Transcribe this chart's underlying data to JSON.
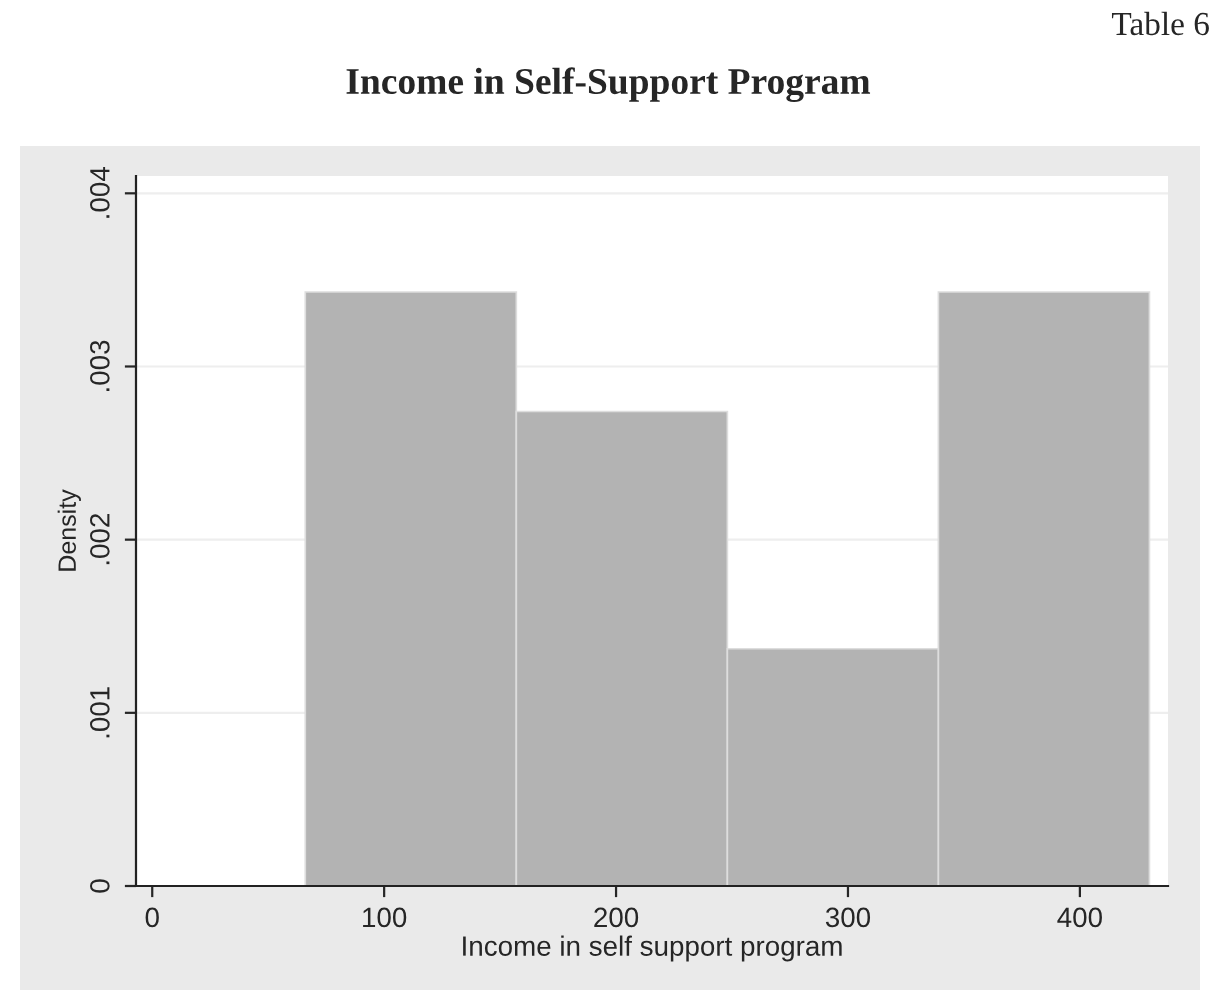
{
  "chart_data": {
    "type": "histogram",
    "title": "Income in Self-Support Program",
    "xlabel": "Income in self support program",
    "ylabel": "Density",
    "annotations": [
      "Table 6"
    ],
    "bins": [
      66,
      157,
      248,
      339,
      430
    ],
    "values": [
      0.00343,
      0.00274,
      0.00137,
      0.00343
    ],
    "color": "#b3b3b3",
    "xlim": [
      -7,
      438
    ],
    "xticks": [
      0,
      100,
      200,
      300,
      400
    ],
    "ylim": [
      0,
      0.0041
    ],
    "yticks": [
      0,
      {
        "value": 0.001,
        "label": ".001"
      },
      {
        "value": 0.002,
        "label": ".002"
      },
      {
        "value": 0.003,
        "label": ".003"
      },
      {
        "value": 0.004,
        "label": ".004"
      }
    ],
    "grid": "y",
    "legend": false
  }
}
